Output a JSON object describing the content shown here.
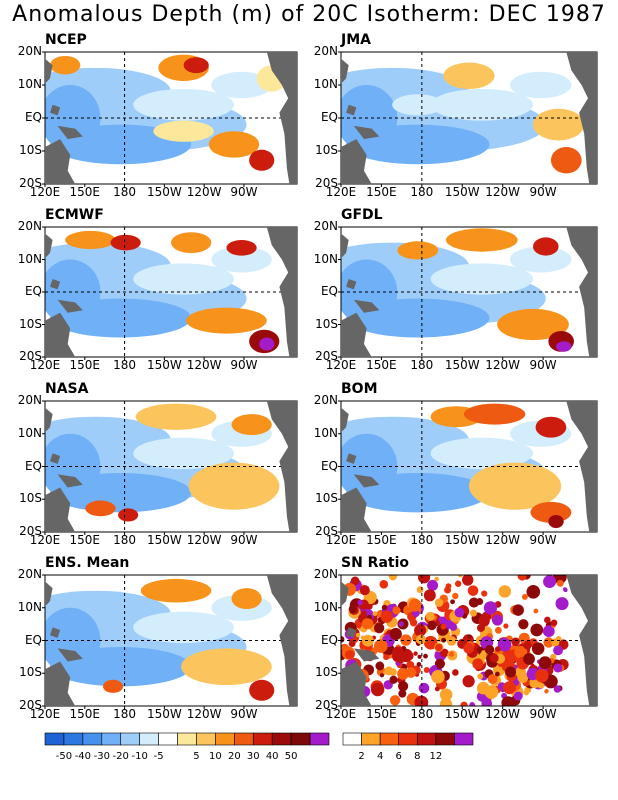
{
  "title": "Anomalous Depth (m) of 20C Isotherm: DEC 1987",
  "axes": {
    "lat_labels": [
      "20N",
      "10N",
      "EQ",
      "10S",
      "20S"
    ],
    "lon_labels": [
      "120E",
      "150E",
      "180",
      "150W",
      "120W",
      "90W"
    ]
  },
  "colors": {
    "land": "#666666",
    "anomaly_scale": [
      "#1f62d4",
      "#2c78e0",
      "#4690ee",
      "#6fb0f6",
      "#9fcdfa",
      "#d3edfc",
      "#ffffff",
      "#fde79a",
      "#fcc45c",
      "#f7921a",
      "#ee5a12",
      "#cc1c0e",
      "#9a0a0a",
      "#7d0a0a",
      "#a41bc9"
    ],
    "sn_scale": [
      "#ffffff",
      "#fca32a",
      "#f86010",
      "#e8300e",
      "#c0120e",
      "#8e0a0a",
      "#a41bc9"
    ]
  },
  "colorbars": {
    "anomaly_labels": [
      "-50",
      "-40",
      "-30",
      "-20",
      "-10",
      "-5",
      "5",
      "10",
      "20",
      "30",
      "40",
      "50"
    ],
    "sn_labels": [
      "2",
      "4",
      "6",
      "8",
      "12"
    ]
  },
  "chart_data": [
    {
      "type": "heatmap",
      "label": "NCEP",
      "variable": "20C isotherm depth anomaly",
      "units": "m",
      "lat_range": [
        "20S",
        "20N"
      ],
      "lon_range": [
        "120E",
        "70W"
      ]
    },
    {
      "type": "heatmap",
      "label": "JMA",
      "variable": "20C isotherm depth anomaly",
      "units": "m",
      "lat_range": [
        "20S",
        "20N"
      ],
      "lon_range": [
        "120E",
        "70W"
      ]
    },
    {
      "type": "heatmap",
      "label": "ECMWF",
      "variable": "20C isotherm depth anomaly",
      "units": "m",
      "lat_range": [
        "20S",
        "20N"
      ],
      "lon_range": [
        "120E",
        "70W"
      ]
    },
    {
      "type": "heatmap",
      "label": "GFDL",
      "variable": "20C isotherm depth anomaly",
      "units": "m",
      "lat_range": [
        "20S",
        "20N"
      ],
      "lon_range": [
        "120E",
        "70W"
      ]
    },
    {
      "type": "heatmap",
      "label": "NASA",
      "variable": "20C isotherm depth anomaly",
      "units": "m",
      "lat_range": [
        "20S",
        "20N"
      ],
      "lon_range": [
        "120E",
        "70W"
      ]
    },
    {
      "type": "heatmap",
      "label": "BOM",
      "variable": "20C isotherm depth anomaly",
      "units": "m",
      "lat_range": [
        "20S",
        "20N"
      ],
      "lon_range": [
        "120E",
        "70W"
      ]
    },
    {
      "type": "heatmap",
      "label": "ENS. Mean",
      "variable": "20C isotherm depth anomaly",
      "units": "m",
      "lat_range": [
        "20S",
        "20N"
      ],
      "lon_range": [
        "120E",
        "70W"
      ]
    },
    {
      "type": "heatmap",
      "label": "SN Ratio",
      "variable": "signal to noise ratio",
      "lat_range": [
        "20S",
        "20N"
      ],
      "lon_range": [
        "120E",
        "70W"
      ]
    }
  ]
}
